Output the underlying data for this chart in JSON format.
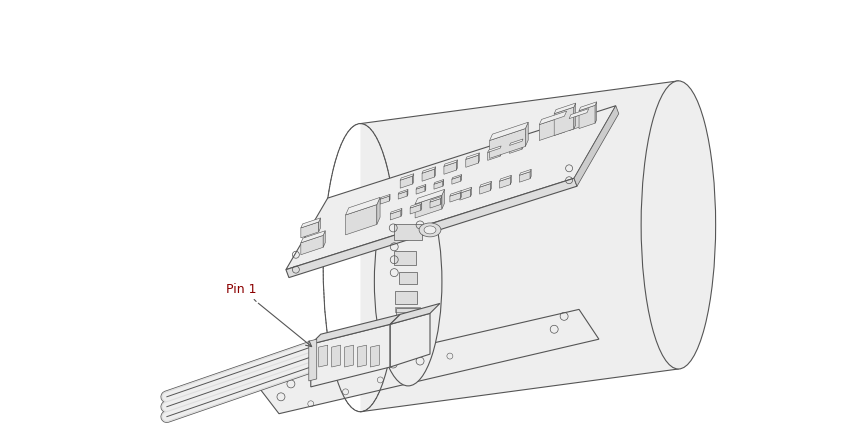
{
  "background_color": "#ffffff",
  "line_color": "#555555",
  "fill_white": "#ffffff",
  "fill_light": "#eeeeee",
  "fill_mid": "#dddddd",
  "fill_dark": "#cccccc",
  "pin_label": "Pin 1",
  "pin_label_color": "#8B0000",
  "figsize": [
    8.6,
    4.3
  ],
  "dpi": 100
}
